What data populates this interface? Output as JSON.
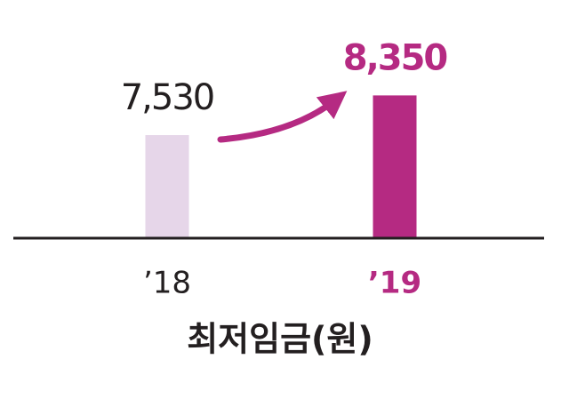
{
  "chart_data": {
    "type": "bar",
    "title": "최저임금(원)",
    "categories": [
      "’18",
      "’19"
    ],
    "values": [
      7530,
      8350
    ],
    "value_labels": [
      "7,530",
      "8,350"
    ],
    "colors": [
      "#e6d6e9",
      "#b52a82"
    ],
    "label_colors": [
      "#231f20",
      "#b52a82"
    ],
    "ylim": [
      5400,
      9000
    ]
  }
}
